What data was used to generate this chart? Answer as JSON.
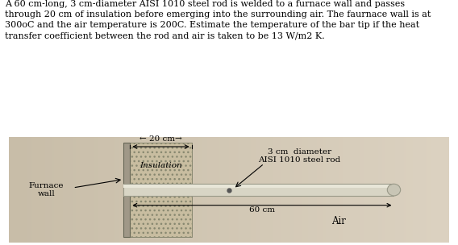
{
  "title_text": "A 60 cm-long, 3 cm-diameter AISI 1010 steel rod is welded to a furnace wall and passes\nthrough 20 cm of insulation before emerging into the surrounding air. The faurnace wall is at\n300oC and the air temperature is 200C. Estimate the temperature of the bar tip if the heat\ntransfer coefficient between the rod and air is taken to be 13 W/m2 K.",
  "title_fontsize": 8.0,
  "diagram_bg_left": "#c8bda8",
  "diagram_bg_right": "#ddd5c0",
  "wall_color": "#a09888",
  "wall_edge": "#666655",
  "insulation_face": "#c8bda0",
  "insulation_edge": "#888870",
  "rod_face": "#d8d5c5",
  "rod_top": "#e8e6d8",
  "rod_edge": "#999988",
  "tip_face": "#c8c5b5",
  "label_20cm": "← 20 cm→",
  "label_60cm": "←——————60 cm——————→",
  "label_insulation": "Insulation",
  "label_furnace": "Furnace\nwall",
  "label_air": "Air",
  "label_rod_line1": "3 cm  diameter",
  "label_rod_line2": "AISI 1010 steel rod"
}
